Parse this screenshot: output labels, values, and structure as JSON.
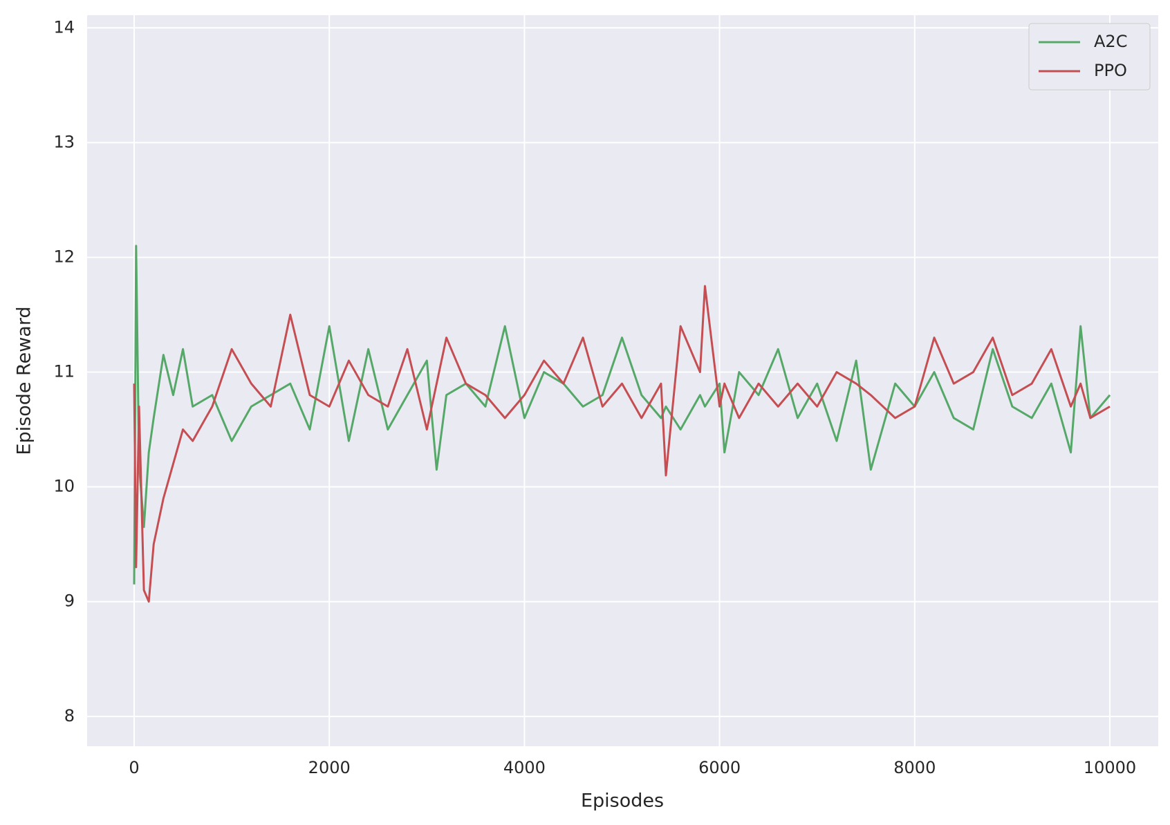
{
  "chart_data": {
    "type": "line",
    "x_label": "Episodes",
    "y_label": "Episode Reward",
    "x": [
      0,
      20,
      50,
      100,
      150,
      200,
      300,
      400,
      500,
      600,
      800,
      1000,
      1200,
      1400,
      1600,
      1800,
      2000,
      2200,
      2400,
      2600,
      2800,
      3000,
      3100,
      3200,
      3400,
      3600,
      3800,
      4000,
      4200,
      4400,
      4600,
      4800,
      5000,
      5200,
      5400,
      5450,
      5600,
      5800,
      5850,
      6000,
      6050,
      6200,
      6400,
      6600,
      6800,
      7000,
      7200,
      7400,
      7550,
      7800,
      8000,
      8200,
      8400,
      8600,
      8800,
      9000,
      9200,
      9400,
      9600,
      9700,
      9800,
      10000
    ],
    "series": [
      {
        "name": "A2C",
        "color": "#55a868",
        "values": [
          9.15,
          12.1,
          10.2,
          9.65,
          10.3,
          10.6,
          11.15,
          10.8,
          11.2,
          10.7,
          10.8,
          10.4,
          10.7,
          10.8,
          10.9,
          10.5,
          11.4,
          10.4,
          11.2,
          10.5,
          10.8,
          11.1,
          10.15,
          10.8,
          10.9,
          10.7,
          11.4,
          10.6,
          11.0,
          10.9,
          10.7,
          10.8,
          11.3,
          10.8,
          10.6,
          10.7,
          10.5,
          10.8,
          10.7,
          10.9,
          10.3,
          11.0,
          10.8,
          11.2,
          10.6,
          10.9,
          10.4,
          11.1,
          10.15,
          10.9,
          10.7,
          11.0,
          10.6,
          10.5,
          11.2,
          10.7,
          10.6,
          10.9,
          10.3,
          11.4,
          10.6,
          10.8
        ]
      },
      {
        "name": "PPO",
        "color": "#c44e52",
        "values": [
          10.9,
          9.3,
          10.7,
          9.1,
          9.0,
          9.5,
          9.9,
          10.2,
          10.5,
          10.4,
          10.7,
          11.2,
          10.9,
          10.7,
          11.5,
          10.8,
          10.7,
          11.1,
          10.8,
          10.7,
          11.2,
          10.5,
          10.9,
          11.3,
          10.9,
          10.8,
          10.6,
          10.8,
          11.1,
          10.9,
          11.3,
          10.7,
          10.9,
          10.6,
          10.9,
          10.1,
          11.4,
          11.0,
          11.75,
          10.7,
          10.9,
          10.6,
          10.9,
          10.7,
          10.9,
          10.7,
          11.0,
          10.9,
          10.8,
          10.6,
          10.7,
          11.3,
          10.9,
          11.0,
          11.3,
          10.8,
          10.9,
          11.2,
          10.7,
          10.9,
          10.6,
          10.7
        ]
      }
    ],
    "xlim": [
      -482,
      10496
    ],
    "ylim": [
      7.74,
      14.11
    ],
    "xticks": [
      0,
      2000,
      4000,
      6000,
      8000,
      10000
    ],
    "yticks": [
      8,
      9,
      10,
      11,
      12,
      13,
      14
    ],
    "grid": true,
    "legend": "upper right"
  }
}
